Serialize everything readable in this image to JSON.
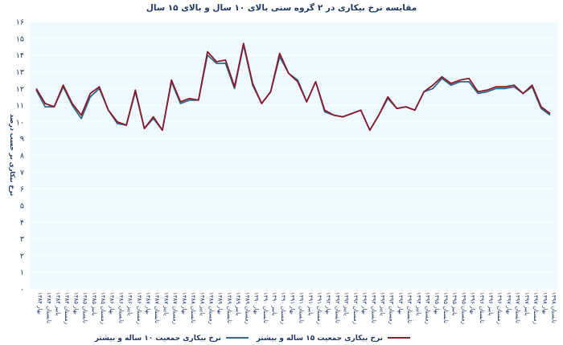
{
  "chart_data": {
    "type": "line",
    "title": "مقایسه نرخ بیکاری در ۲ گروه سنی بالای ۱۰ سال و بالای ۱۵ سال",
    "ylabel": "نرخ بیکاری بر حسب درصد",
    "xlabel": "",
    "ylim": [
      0,
      16
    ],
    "yticks": [
      "۰",
      "۱",
      "۲",
      "۳",
      "۴",
      "۵",
      "۶",
      "۷",
      "۸",
      "۹",
      "۱۰",
      "۱۱",
      "۱۲",
      "۱۳",
      "۱۴",
      "۱۵",
      "۱۶"
    ],
    "grid": true,
    "legend_position": "bottom",
    "categories": [
      "بهار ۱۳۸۴",
      "تابستان ۱۳۸۴",
      "پاییز ۱۳۸۴",
      "زمستان ۱۳۸۴",
      "بهار ۱۳۸۵",
      "تابستان ۱۳۸۵",
      "پاییز ۱۳۸۵",
      "زمستان ۱۳۸۵",
      "بهار ۱۳۸۶",
      "تابستان ۱۳۸۶",
      "پاییز ۱۳۸۶",
      "زمستان ۱۳۸۶",
      "بهار ۱۳۸۷",
      "تابستان ۱۳۸۷",
      "پاییز ۱۳۸۷",
      "زمستان ۱۳۸۷",
      "بهار ۱۳۸۸",
      "تابستان ۱۳۸۸",
      "پاییز ۱۳۸۸",
      "زمستان ۱۳۸۸",
      "بهار ۱۳۸۹",
      "تابستان ۱۳۸۹",
      "پاییز ۱۳۸۹",
      "زمستان ۱۳۸۹",
      "بهار ۱۳۹۰",
      "تابستان ۱۳۹۰",
      "پاییز ۱۳۹۰",
      "زمستان ۱۳۹۰",
      "بهار ۱۳۹۱",
      "تابستان ۱۳۹۱",
      "پاییز ۱۳۹۱",
      "زمستان ۱۳۹۱",
      "بهار ۱۳۹۲",
      "تابستان ۱۳۹۲",
      "پاییز ۱۳۹۲",
      "زمستان ۱۳۹۲",
      "بهار ۱۳۹۳",
      "تابستان ۱۳۹۳",
      "پاییز ۱۳۹۳",
      "زمستان ۱۳۹۳",
      "بهار ۱۳۹۴",
      "تابستان ۱۳۹۴",
      "پاییز ۱۳۹۴",
      "زمستان ۱۳۹۴",
      "بهار ۱۳۹۵",
      "تابستان ۱۳۹۵",
      "پاییز ۱۳۹۵",
      "زمستان ۱۳۹۵",
      "بهار ۱۳۹۶",
      "تابستان ۱۳۹۶",
      "پاییز ۱۳۹۶",
      "زمستان ۱۳۹۶",
      "بهار ۱۳۹۷",
      "تابستان ۱۳۹۷",
      "پاییز ۱۳۹۷",
      "زمستان ۱۳۹۷",
      "بهار ۱۳۹۸",
      "تابستان ۱۳۹۸"
    ],
    "series": [
      {
        "name": "نرخ بیکاری جمعیت ۱۰ ساله و بیشتر",
        "color": "#2e6b8a",
        "values": [
          11.9,
          10.9,
          10.9,
          12.1,
          11.0,
          10.2,
          11.5,
          12.0,
          10.7,
          9.9,
          9.8,
          11.8,
          9.6,
          10.2,
          9.5,
          12.4,
          11.1,
          11.3,
          11.3,
          14.0,
          13.5,
          13.5,
          12.0,
          14.6,
          12.2,
          11.1,
          11.8,
          13.9,
          12.9,
          12.5,
          11.2,
          12.4,
          10.6,
          10.4,
          10.3,
          10.5,
          10.7,
          9.5,
          10.4,
          11.4,
          10.8,
          10.9,
          10.7,
          11.8,
          12.0,
          12.6,
          12.2,
          12.4,
          12.4,
          11.7,
          11.8,
          12.0,
          12.0,
          12.1,
          11.7,
          12.1,
          10.8,
          10.4
        ]
      },
      {
        "name": "نرخ بیکاری جمعیت ۱۵ ساله و بیشتر",
        "color": "#8b1a2b",
        "values": [
          12.0,
          11.1,
          10.9,
          12.2,
          11.1,
          10.4,
          11.7,
          12.1,
          10.7,
          10.0,
          9.8,
          11.9,
          9.6,
          10.3,
          9.5,
          12.5,
          11.2,
          11.4,
          11.3,
          14.2,
          13.6,
          13.7,
          12.1,
          14.7,
          12.3,
          11.1,
          11.8,
          14.1,
          12.9,
          12.4,
          11.2,
          12.4,
          10.7,
          10.4,
          10.3,
          10.5,
          10.7,
          9.5,
          10.4,
          11.5,
          10.8,
          10.9,
          10.7,
          11.8,
          12.2,
          12.7,
          12.3,
          12.5,
          12.6,
          11.8,
          11.9,
          12.1,
          12.1,
          12.2,
          11.7,
          12.2,
          10.9,
          10.5
        ]
      }
    ]
  }
}
